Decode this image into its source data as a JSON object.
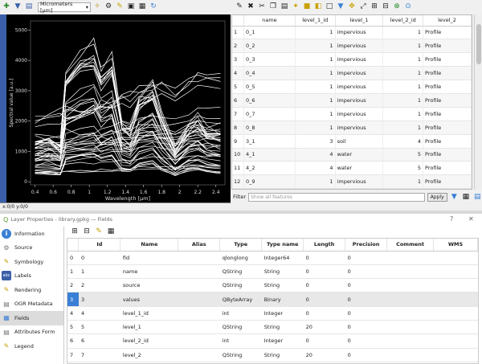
{
  "spectral_plot": {
    "unit_select": "Micrometers [µm]",
    "x_axis_label": "Wavelength [µm]",
    "y_axis_label": "Spectral value [a.u.]",
    "x_ticks": [
      "0.4",
      "0.6",
      "0.8",
      "1",
      "1.2",
      "1.4",
      "1.6",
      "1.8",
      "2",
      "2.2",
      "2.4"
    ],
    "y_ticks": [
      "0",
      "1000",
      "2000",
      "3000",
      "4000",
      "5000"
    ],
    "status_text": "x:0/0 y:0/0"
  },
  "attribute_table": {
    "columns": [
      "",
      "name",
      "level_1_id",
      "level_1",
      "level_2_id",
      "level_2"
    ],
    "rows": [
      [
        "1",
        "0_1",
        "1",
        "impervious",
        "1",
        "Profile"
      ],
      [
        "2",
        "0_2",
        "1",
        "impervious",
        "1",
        "Profile"
      ],
      [
        "3",
        "0_3",
        "1",
        "impervious",
        "1",
        "Profile"
      ],
      [
        "4",
        "0_4",
        "1",
        "impervious",
        "1",
        "Profile"
      ],
      [
        "5",
        "0_5",
        "1",
        "impervious",
        "1",
        "Profile"
      ],
      [
        "6",
        "0_6",
        "1",
        "impervious",
        "1",
        "Profile"
      ],
      [
        "7",
        "0_7",
        "1",
        "impervious",
        "1",
        "Profile"
      ],
      [
        "8",
        "0_8",
        "1",
        "impervious",
        "1",
        "Profile"
      ],
      [
        "9",
        "3_1",
        "3",
        "soil",
        "4",
        "Profile"
      ],
      [
        "10",
        "4_1",
        "4",
        "water",
        "5",
        "Profile"
      ],
      [
        "11",
        "4_2",
        "4",
        "water",
        "5",
        "Profile"
      ],
      [
        "12",
        "0_9",
        "1",
        "impervious",
        "1",
        "Profile"
      ]
    ],
    "filter_label": "Filter",
    "filter_placeholder": "Show all features",
    "apply_label": "Apply"
  },
  "layer_properties": {
    "title": "Layer Properties - library.gpkg — Fields",
    "help_glyph": "?",
    "close_glyph": "✕",
    "sidebar": [
      {
        "label": "Information",
        "icon": "info-icon"
      },
      {
        "label": "Source",
        "icon": "source-icon"
      },
      {
        "label": "Symbology",
        "icon": "symbology-icon"
      },
      {
        "label": "Labels",
        "icon": "labels-icon"
      },
      {
        "label": "Rendering",
        "icon": "rendering-icon"
      },
      {
        "label": "OGR Metadata",
        "icon": "metadata-icon"
      },
      {
        "label": "Fields",
        "icon": "fields-icon"
      },
      {
        "label": "Attributes Form",
        "icon": "form-icon"
      },
      {
        "label": "Legend",
        "icon": "legend-icon"
      }
    ],
    "sidebar_labels_icon_text": "abc",
    "fields_columns": [
      "",
      "Id",
      "Name",
      "Alias",
      "Type",
      "Type name",
      "Length",
      "Precision",
      "Comment",
      "WMS"
    ],
    "fields_rows": [
      [
        "0",
        "0",
        "fid",
        "",
        "qlonglong",
        "Integer64",
        "0",
        "0",
        "",
        ""
      ],
      [
        "1",
        "1",
        "name",
        "",
        "QString",
        "String",
        "0",
        "0",
        "",
        ""
      ],
      [
        "2",
        "2",
        "source",
        "",
        "QString",
        "String",
        "0",
        "0",
        "",
        ""
      ],
      [
        "3",
        "3",
        "values",
        "",
        "QByteArray",
        "Binary",
        "0",
        "0",
        "",
        ""
      ],
      [
        "4",
        "4",
        "level_1_id",
        "",
        "int",
        "Integer",
        "0",
        "0",
        "",
        ""
      ],
      [
        "5",
        "5",
        "level_1",
        "",
        "QString",
        "String",
        "20",
        "0",
        "",
        ""
      ],
      [
        "6",
        "6",
        "level_2_id",
        "",
        "int",
        "Integer",
        "0",
        "0",
        "",
        ""
      ],
      [
        "7",
        "7",
        "level_2",
        "",
        "QString",
        "String",
        "20",
        "0",
        "",
        ""
      ]
    ]
  },
  "colors": {
    "plot_bg": "#000000",
    "curve": "#ffffff",
    "selection": "#3a7fd6"
  }
}
